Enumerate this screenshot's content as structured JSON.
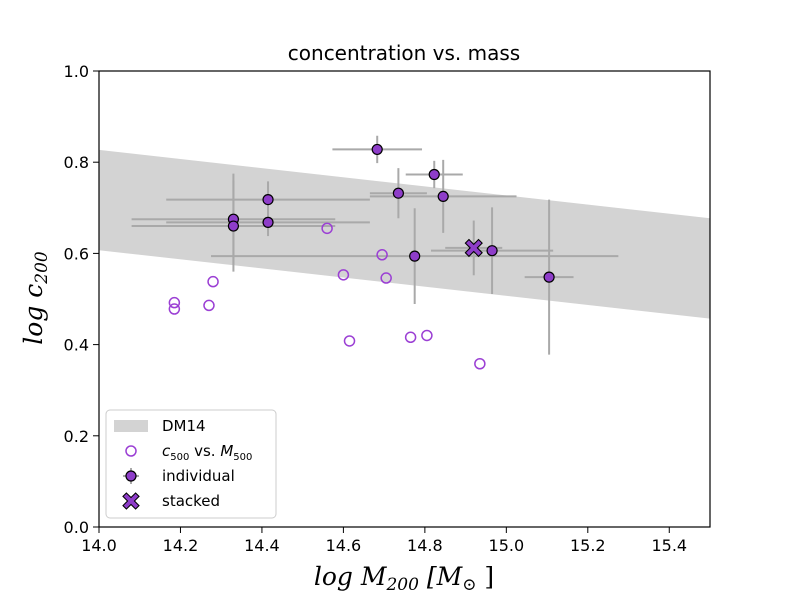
{
  "chart_data": {
    "type": "scatter",
    "title": "concentration vs. mass",
    "xlabel": {
      "base": "log M",
      "sub": "200",
      "unit": "[M",
      "unit_sub": "⊙",
      "close": "]"
    },
    "ylabel": {
      "base": "log c",
      "sub": "200"
    },
    "xlim": [
      14.0,
      15.5
    ],
    "ylim": [
      0.0,
      1.0
    ],
    "x_ticks": [
      14.0,
      14.2,
      14.4,
      14.6,
      14.8,
      15.0,
      15.2,
      15.4
    ],
    "x_tick_labels": [
      "14.0",
      "14.2",
      "14.4",
      "14.6",
      "14.8",
      "15.0",
      "15.2",
      "15.4"
    ],
    "y_ticks": [
      0.0,
      0.2,
      0.4,
      0.6,
      0.8,
      1.0
    ],
    "y_tick_labels": [
      "0.0",
      "0.2",
      "0.4",
      "0.6",
      "0.8",
      "1.0"
    ],
    "band": {
      "name": "DM14",
      "x": [
        14.0,
        15.5
      ],
      "lower": [
        0.607,
        0.457
      ],
      "upper": [
        0.827,
        0.677
      ],
      "color": "#d3d3d3"
    },
    "series": [
      {
        "name": "c500 vs. M500",
        "marker": "open-circle",
        "color": "#9b3fd4",
        "points": [
          {
            "x": 14.185,
            "y": 0.492
          },
          {
            "x": 14.185,
            "y": 0.478
          },
          {
            "x": 14.27,
            "y": 0.486
          },
          {
            "x": 14.28,
            "y": 0.538
          },
          {
            "x": 14.56,
            "y": 0.655
          },
          {
            "x": 14.6,
            "y": 0.553
          },
          {
            "x": 14.615,
            "y": 0.408
          },
          {
            "x": 14.695,
            "y": 0.597
          },
          {
            "x": 14.705,
            "y": 0.546
          },
          {
            "x": 14.765,
            "y": 0.416
          },
          {
            "x": 14.805,
            "y": 0.42
          },
          {
            "x": 14.935,
            "y": 0.358
          }
        ]
      },
      {
        "name": "individual",
        "marker": "filled-circle-errorbar",
        "color": "#8e3dc9",
        "edge": "#000000",
        "err_color": "#a9a9a9",
        "points": [
          {
            "x": 14.33,
            "y": 0.675,
            "xerr": [
              0.25,
              0.25
            ],
            "yerr": [
              0.1,
              0.1
            ]
          },
          {
            "x": 14.33,
            "y": 0.66,
            "xerr": [
              0.25,
              0.25
            ],
            "yerr": [
              0.1,
              0.1
            ]
          },
          {
            "x": 14.415,
            "y": 0.718,
            "xerr": [
              0.25,
              0.25
            ],
            "yerr": [
              0.04,
              0.04
            ]
          },
          {
            "x": 14.415,
            "y": 0.668,
            "xerr": [
              0.25,
              0.25
            ],
            "yerr": [
              0.03,
              0.03
            ]
          },
          {
            "x": 14.683,
            "y": 0.828,
            "xerr": [
              0.11,
              0.11
            ],
            "yerr": [
              0.03,
              0.03
            ]
          },
          {
            "x": 14.735,
            "y": 0.732,
            "xerr": [
              0.07,
              0.07
            ],
            "yerr": [
              0.055,
              0.055
            ]
          },
          {
            "x": 14.823,
            "y": 0.773,
            "xerr": [
              0.07,
              0.07
            ],
            "yerr": [
              0.03,
              0.03
            ]
          },
          {
            "x": 14.845,
            "y": 0.725,
            "xerr": [
              0.18,
              0.18
            ],
            "yerr": [
              0.08,
              0.08
            ]
          },
          {
            "x": 14.775,
            "y": 0.594,
            "xerr": [
              0.5,
              0.5
            ],
            "yerr": [
              0.105,
              0.105
            ]
          },
          {
            "x": 14.965,
            "y": 0.606,
            "xerr": [
              0.15,
              0.15
            ],
            "yerr": [
              0.095,
              0.095
            ]
          },
          {
            "x": 15.105,
            "y": 0.548,
            "xerr": [
              0.06,
              0.06
            ],
            "yerr": [
              0.17,
              0.17
            ]
          }
        ]
      },
      {
        "name": "stacked",
        "marker": "filled-x",
        "color": "#8e3dc9",
        "edge": "#000000",
        "err_color": "#a9a9a9",
        "points": [
          {
            "x": 14.92,
            "y": 0.612,
            "xerr": [
              0.07,
              0.07
            ],
            "yerr": [
              0.06,
              0.06
            ]
          }
        ]
      }
    ],
    "legend": {
      "placement": "lower-left",
      "entries": [
        {
          "label": "DM14",
          "type": "band"
        },
        {
          "label_base": "c",
          "label_sub": "500",
          "label_mid": " vs. ",
          "label_base2": "M",
          "label_sub2": "500",
          "type": "open-circle"
        },
        {
          "label": "individual",
          "type": "filled-circle-errorbar"
        },
        {
          "label": "stacked",
          "type": "filled-x"
        }
      ]
    }
  }
}
